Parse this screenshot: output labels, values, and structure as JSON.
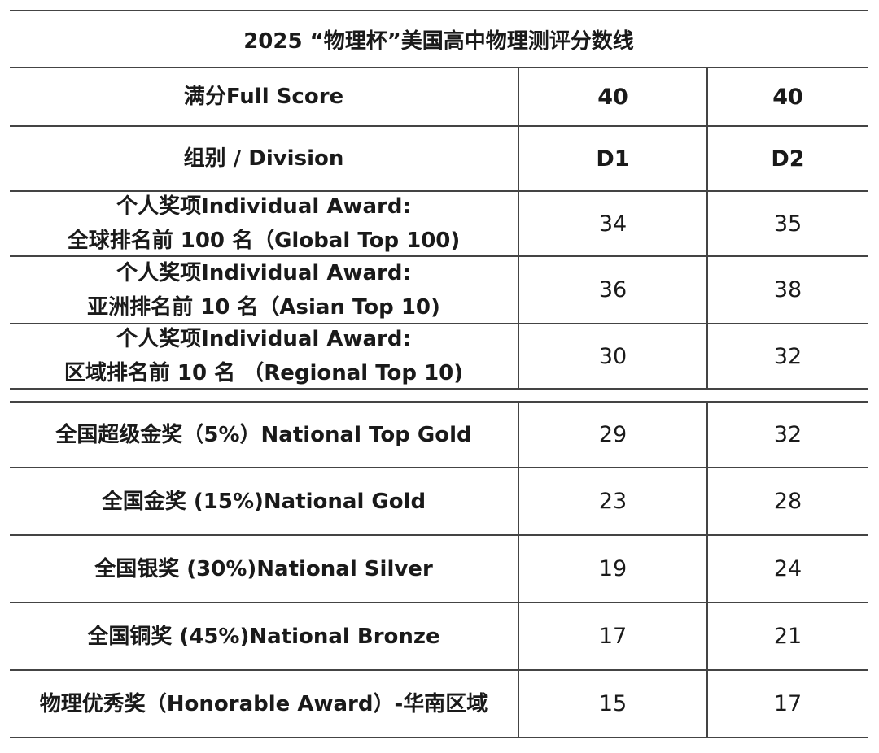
{
  "title": "2025 “物理杯”美国高中物理测评分数线",
  "header_rows": [
    {
      "label": "满分Full Score",
      "d1": "40",
      "d2": "40"
    },
    {
      "label": "组别 / Division",
      "d1": "D1",
      "d2": "D2"
    }
  ],
  "individual_rows": [
    {
      "line1": "个人奖项Individual Award:",
      "line2": "全球排名前 100 名（Global Top 100)",
      "d1": "34",
      "d2": "35"
    },
    {
      "line1": "个人奖项Individual Award:",
      "line2": "亚洲排名前 10 名（Asian Top 10)",
      "d1": "36",
      "d2": "38"
    },
    {
      "line1": "个人奖项Individual Award:",
      "line2": "区域排名前 10 名 （Regional Top 10)",
      "d1": "30",
      "d2": "32"
    }
  ],
  "national_rows": [
    {
      "label": "全国超级金奖（5%）National Top Gold",
      "d1": "29",
      "d2": "32"
    },
    {
      "label": "全国金奖 (15%)National Gold",
      "d1": "23",
      "d2": "28"
    },
    {
      "label": "全国银奖 (30%)National Silver",
      "d1": "19",
      "d2": "24"
    },
    {
      "label": "全国铜奖 (45%)National Bronze",
      "d1": "17",
      "d2": "21"
    },
    {
      "label": "物理优秀奖（Honorable Award）-华南区域",
      "d1": "15",
      "d2": "17"
    }
  ]
}
